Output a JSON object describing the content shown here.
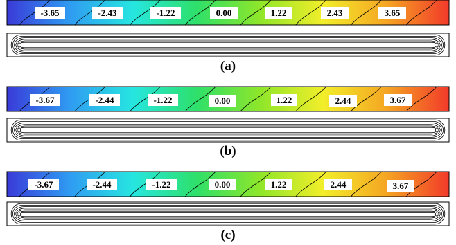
{
  "panels": [
    {
      "label": "(a)",
      "contour_values": [
        "-3.65",
        "-2.43",
        "-1.22",
        "0.00",
        "1.22",
        "2.43",
        "3.65"
      ]
    },
    {
      "label": "(b)",
      "contour_values": [
        "-3.67",
        "-2.44",
        "-1.22",
        "0.00",
        "1.22",
        "2.44",
        "3.67"
      ]
    },
    {
      "label": "(c)",
      "contour_values": [
        "-3.67",
        "-2.44",
        "-1.22",
        "0.00",
        "1.22",
        "2.44",
        "3.67"
      ]
    }
  ],
  "colormap": [
    "#3a3ad8",
    "#2f9cf2",
    "#26e6e0",
    "#2ee06a",
    "#8ee62a",
    "#f2ee2a",
    "#f5a623",
    "#f23a2a"
  ]
}
